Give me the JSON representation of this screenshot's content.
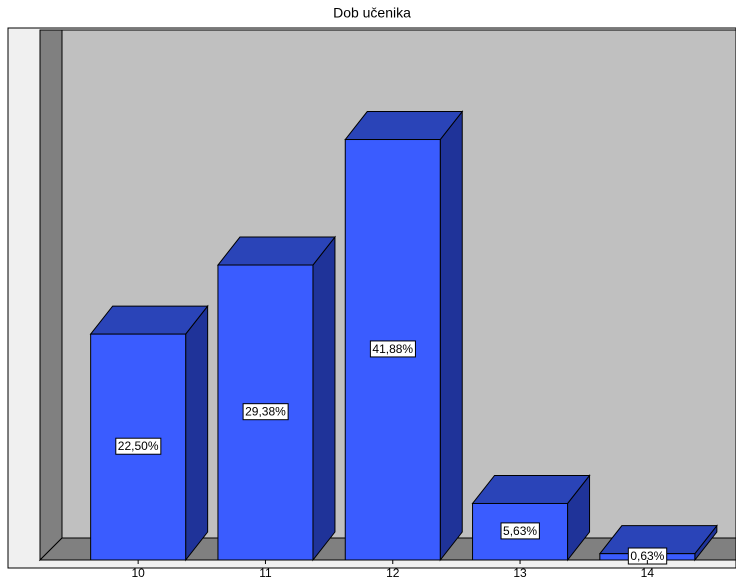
{
  "chart_data": {
    "type": "bar3d",
    "title": "Dob učenika",
    "categories": [
      "10",
      "11",
      "12",
      "13",
      "14"
    ],
    "values": [
      22.5,
      29.38,
      41.88,
      5.63,
      0.63
    ],
    "value_labels": [
      "22,50%",
      "29,38%",
      "41,88%",
      "5,63%",
      "0,63%"
    ],
    "color": "#3a5cff",
    "ylim": [
      0,
      50
    ]
  }
}
